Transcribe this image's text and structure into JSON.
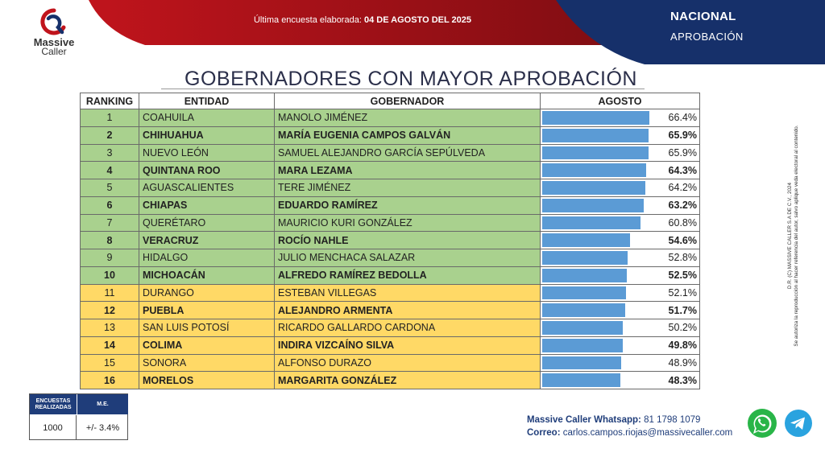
{
  "header": {
    "survey_label": "Última encuesta elaborada:",
    "survey_date": "04 DE AGOSTO DEL 2025",
    "scope": "NACIONAL",
    "section": "APROBACIÓN",
    "red_color": "#b3151d",
    "navy_color": "#16306a"
  },
  "logo": {
    "line1": "Massive",
    "line2": "Caller"
  },
  "title": "GOBERNADORES CON MAYOR APROBACIÓN",
  "chart_data": {
    "type": "table",
    "title": "GOBERNADORES CON MAYOR APROBACIÓN",
    "columns": [
      "RANKING",
      "ENTIDAD",
      "GOBERNADOR",
      "AGOSTO"
    ],
    "bar_color": "#5b9bd5",
    "bar_max": 100,
    "group_colors": {
      "green": "#a9d18e",
      "yellow": "#ffd966"
    },
    "rows": [
      {
        "rank": "1",
        "entidad": "COAHUILA",
        "gobernador": "MANOLO JIMÉNEZ",
        "value": 66.4,
        "label": "66.4%",
        "group": "green",
        "bold": false
      },
      {
        "rank": "2",
        "entidad": "CHIHUAHUA",
        "gobernador": "MARÍA EUGENIA CAMPOS GALVÁN",
        "value": 65.9,
        "label": "65.9%",
        "group": "green",
        "bold": true
      },
      {
        "rank": "3",
        "entidad": "NUEVO LEÓN",
        "gobernador": "SAMUEL ALEJANDRO GARCÍA SEPÚLVEDA",
        "value": 65.9,
        "label": "65.9%",
        "group": "green",
        "bold": false
      },
      {
        "rank": "4",
        "entidad": "QUINTANA ROO",
        "gobernador": "MARA LEZAMA",
        "value": 64.3,
        "label": "64.3%",
        "group": "green",
        "bold": true
      },
      {
        "rank": "5",
        "entidad": "AGUASCALIENTES",
        "gobernador": "TERE JIMÉNEZ",
        "value": 64.2,
        "label": "64.2%",
        "group": "green",
        "bold": false
      },
      {
        "rank": "6",
        "entidad": "CHIAPAS",
        "gobernador": "EDUARDO RAMÍREZ",
        "value": 63.2,
        "label": "63.2%",
        "group": "green",
        "bold": true
      },
      {
        "rank": "7",
        "entidad": "QUERÉTARO",
        "gobernador": "MAURICIO KURI GONZÁLEZ",
        "value": 60.8,
        "label": "60.8%",
        "group": "green",
        "bold": false
      },
      {
        "rank": "8",
        "entidad": "VERACRUZ",
        "gobernador": "ROCÍO NAHLE",
        "value": 54.6,
        "label": "54.6%",
        "group": "green",
        "bold": true
      },
      {
        "rank": "9",
        "entidad": "HIDALGO",
        "gobernador": "JULIO MENCHACA SALAZAR",
        "value": 52.8,
        "label": "52.8%",
        "group": "green",
        "bold": false
      },
      {
        "rank": "10",
        "entidad": "MICHOACÁN",
        "gobernador": "ALFREDO RAMÍREZ BEDOLLA",
        "value": 52.5,
        "label": "52.5%",
        "group": "green",
        "bold": true
      },
      {
        "rank": "11",
        "entidad": "DURANGO",
        "gobernador": "ESTEBAN VILLEGAS",
        "value": 52.1,
        "label": "52.1%",
        "group": "yellow",
        "bold": false
      },
      {
        "rank": "12",
        "entidad": "PUEBLA",
        "gobernador": "ALEJANDRO ARMENTA",
        "value": 51.7,
        "label": "51.7%",
        "group": "yellow",
        "bold": true
      },
      {
        "rank": "13",
        "entidad": "SAN LUIS POTOSÍ",
        "gobernador": "RICARDO GALLARDO CARDONA",
        "value": 50.2,
        "label": "50.2%",
        "group": "yellow",
        "bold": false
      },
      {
        "rank": "14",
        "entidad": "COLIMA",
        "gobernador": "INDIRA VIZCAÍNO SILVA",
        "value": 49.8,
        "label": "49.8%",
        "group": "yellow",
        "bold": true
      },
      {
        "rank": "15",
        "entidad": "SONORA",
        "gobernador": "ALFONSO DURAZO",
        "value": 48.9,
        "label": "48.9%",
        "group": "yellow",
        "bold": false
      },
      {
        "rank": "16",
        "entidad": "MORELOS",
        "gobernador": "MARGARITA GONZÁLEZ",
        "value": 48.3,
        "label": "48.3%",
        "group": "yellow",
        "bold": true
      }
    ]
  },
  "legal": {
    "line1": "D.R. (C) MASSIVE CALLER S.A DE C.V., 2024",
    "line2": "Se autoriza la reproducción al hacer referencia del autor, salvo aplique veda electoral al contenido."
  },
  "survey_box": {
    "header_left": "ENCUESTAS REALIZADAS",
    "header_right": "M.E.",
    "value_left": "1000",
    "value_right": "+/- 3.4%"
  },
  "contact": {
    "whatsapp_label": "Massive Caller Whatsapp:",
    "whatsapp_number": "81 1798 1079",
    "email_label": "Correo:",
    "email": "carlos.campos.riojas@massivecaller.com"
  },
  "icons": {
    "whatsapp": "whatsapp-icon",
    "telegram": "telegram-icon"
  }
}
